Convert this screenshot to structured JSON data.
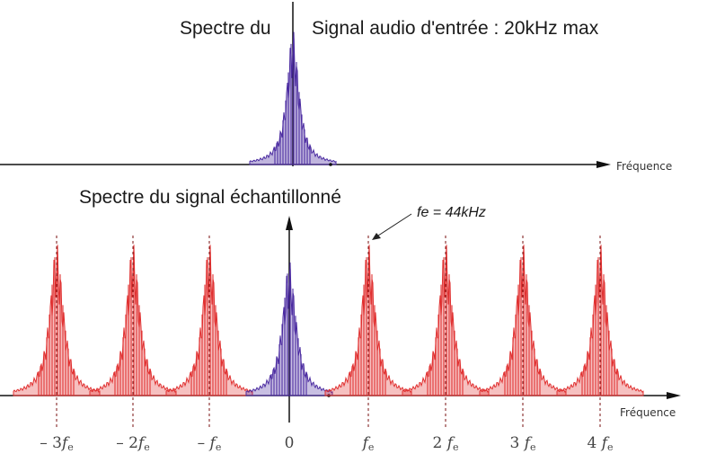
{
  "titles": {
    "top_left": "Spectre du",
    "top_right": "Signal audio d'entrée : 20kHz max",
    "bottom": "Spectre du signal échantillonné"
  },
  "annotation": "fe = 44kHz",
  "axis_labels": {
    "top": "Fréquence",
    "bottom": "Fréquence"
  },
  "ticks": [
    {
      "num": "– 3",
      "sym": "f",
      "sub": "e"
    },
    {
      "num": "– 2",
      "sym": "f",
      "sub": "e"
    },
    {
      "num": "– ",
      "sym": "f",
      "sub": "e"
    },
    {
      "num": "0",
      "sym": "",
      "sub": ""
    },
    {
      "num": "",
      "sym": "f",
      "sub": "e"
    },
    {
      "num": "2 ",
      "sym": "f",
      "sub": "e"
    },
    {
      "num": "3 ",
      "sym": "f",
      "sub": "e"
    },
    {
      "num": "4 ",
      "sym": "f",
      "sub": "e"
    }
  ],
  "colors": {
    "baseband": "#4a2aa0",
    "image": "#e03030",
    "axis": "#111111"
  }
}
